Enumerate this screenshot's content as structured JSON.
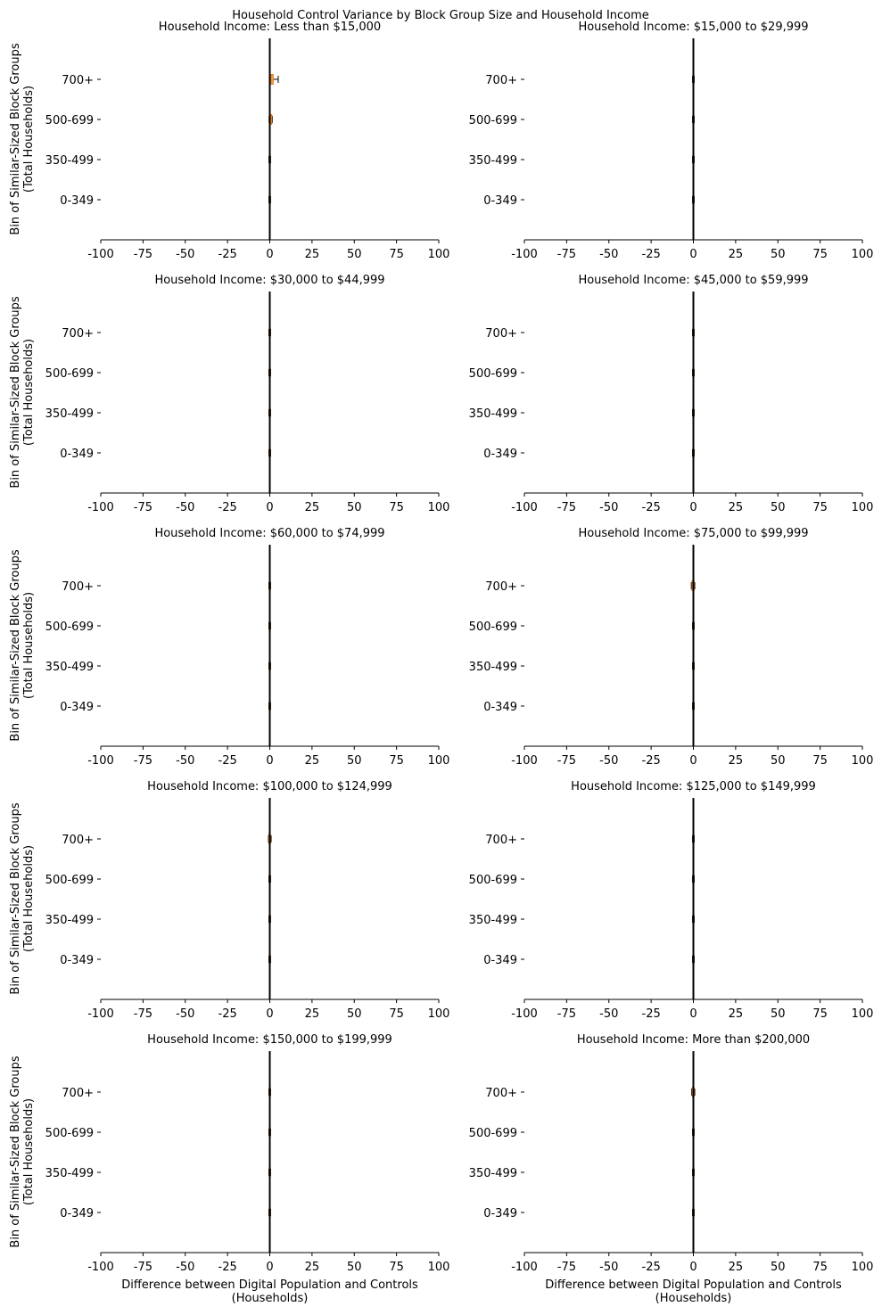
{
  "figure": {
    "title": "Household Control Variance by Block Group Size and Household Income"
  },
  "chart_data": {
    "type": "box",
    "orientation": "horizontal",
    "suptitle": "Household Control Variance by Block Group Size and Household Income",
    "shared": {
      "categories": [
        "0-349",
        "350-499",
        "500-699",
        "700+"
      ],
      "xlim": [
        -100,
        100
      ],
      "xticks": [
        -100,
        -75,
        -50,
        -25,
        0,
        25,
        50,
        75,
        100
      ],
      "xtick_labels": [
        "-100",
        "-75",
        "-50",
        "-25",
        "0",
        "25",
        "50",
        "75",
        "100"
      ],
      "ylabel": "Bin of Similar-Sized Block Groups\n(Total Households)",
      "xlabel": "Difference between Digital Population and Controls\n(Households)",
      "reference_line_x": 0,
      "box_color": "#f5a04a",
      "median_color": "#e07b21",
      "grid": false
    },
    "panels": [
      {
        "title": "Household Income: Less than $15,000",
        "boxes": [
          {
            "category": "0-349",
            "whislo": -0.5,
            "q1": -0.3,
            "med": 0.0,
            "q3": 0.3,
            "whishi": 0.5
          },
          {
            "category": "350-499",
            "whislo": -0.5,
            "q1": -0.3,
            "med": 0.0,
            "q3": 0.3,
            "whishi": 0.5
          },
          {
            "category": "500-699",
            "whislo": -0.4,
            "q1": -0.2,
            "med": 0.5,
            "q3": 1.2,
            "whishi": 1.5
          },
          {
            "category": "700+",
            "whislo": -0.2,
            "q1": 0.0,
            "med": 0.6,
            "q3": 2.0,
            "whishi": 5.0
          }
        ]
      },
      {
        "title": "Household Income: $15,000 to $29,999",
        "boxes": [
          {
            "category": "0-349",
            "whislo": -0.5,
            "q1": -0.3,
            "med": 0.0,
            "q3": 0.3,
            "whishi": 0.5
          },
          {
            "category": "350-499",
            "whislo": -0.5,
            "q1": -0.3,
            "med": 0.0,
            "q3": 0.3,
            "whishi": 0.5
          },
          {
            "category": "500-699",
            "whislo": -0.5,
            "q1": -0.3,
            "med": 0.0,
            "q3": 0.3,
            "whishi": 0.5
          },
          {
            "category": "700+",
            "whislo": -0.5,
            "q1": -0.3,
            "med": 0.0,
            "q3": 0.3,
            "whishi": 0.5
          }
        ]
      },
      {
        "title": "Household Income: $30,000 to $44,999",
        "boxes": [
          {
            "category": "0-349",
            "whislo": -0.5,
            "q1": -0.3,
            "med": 0.0,
            "q3": 0.3,
            "whishi": 0.5
          },
          {
            "category": "350-499",
            "whislo": -0.5,
            "q1": -0.3,
            "med": 0.0,
            "q3": 0.3,
            "whishi": 0.5
          },
          {
            "category": "500-699",
            "whislo": -0.5,
            "q1": -0.3,
            "med": 0.0,
            "q3": 0.3,
            "whishi": 0.5
          },
          {
            "category": "700+",
            "whislo": -0.5,
            "q1": -0.3,
            "med": 0.0,
            "q3": 0.3,
            "whishi": 0.5
          }
        ]
      },
      {
        "title": "Household Income: $45,000 to $59,999",
        "boxes": [
          {
            "category": "0-349",
            "whislo": -0.5,
            "q1": -0.3,
            "med": 0.0,
            "q3": 0.3,
            "whishi": 0.5
          },
          {
            "category": "350-499",
            "whislo": -0.5,
            "q1": -0.3,
            "med": 0.0,
            "q3": 0.3,
            "whishi": 0.5
          },
          {
            "category": "500-699",
            "whislo": -0.5,
            "q1": -0.3,
            "med": 0.0,
            "q3": 0.3,
            "whishi": 0.5
          },
          {
            "category": "700+",
            "whislo": -0.5,
            "q1": -0.3,
            "med": 0.0,
            "q3": 0.3,
            "whishi": 0.5
          }
        ]
      },
      {
        "title": "Household Income: $60,000 to $74,999",
        "boxes": [
          {
            "category": "0-349",
            "whislo": -0.5,
            "q1": -0.3,
            "med": 0.0,
            "q3": 0.3,
            "whishi": 0.5
          },
          {
            "category": "350-499",
            "whislo": -0.5,
            "q1": -0.3,
            "med": 0.0,
            "q3": 0.3,
            "whishi": 0.5
          },
          {
            "category": "500-699",
            "whislo": -0.5,
            "q1": -0.3,
            "med": 0.0,
            "q3": 0.3,
            "whishi": 0.5
          },
          {
            "category": "700+",
            "whislo": -0.5,
            "q1": -0.3,
            "med": 0.0,
            "q3": 0.3,
            "whishi": 0.5
          }
        ]
      },
      {
        "title": "Household Income: $75,000 to $99,999",
        "boxes": [
          {
            "category": "0-349",
            "whislo": -0.5,
            "q1": -0.3,
            "med": 0.0,
            "q3": 0.3,
            "whishi": 0.5
          },
          {
            "category": "350-499",
            "whislo": -0.5,
            "q1": -0.3,
            "med": 0.0,
            "q3": 0.3,
            "whishi": 0.5
          },
          {
            "category": "500-699",
            "whislo": -0.5,
            "q1": -0.3,
            "med": 0.0,
            "q3": 0.3,
            "whishi": 0.5
          },
          {
            "category": "700+",
            "whislo": -1.2,
            "q1": -0.8,
            "med": -0.2,
            "q3": 0.4,
            "whishi": 0.8
          }
        ]
      },
      {
        "title": "Household Income: $100,000 to $124,999",
        "boxes": [
          {
            "category": "0-349",
            "whislo": -0.5,
            "q1": -0.3,
            "med": 0.0,
            "q3": 0.3,
            "whishi": 0.5
          },
          {
            "category": "350-499",
            "whislo": -0.5,
            "q1": -0.3,
            "med": 0.0,
            "q3": 0.3,
            "whishi": 0.5
          },
          {
            "category": "500-699",
            "whislo": -0.5,
            "q1": -0.3,
            "med": 0.0,
            "q3": 0.3,
            "whishi": 0.5
          },
          {
            "category": "700+",
            "whislo": -0.8,
            "q1": -0.6,
            "med": 0.0,
            "q3": 0.4,
            "whishi": 0.8
          }
        ]
      },
      {
        "title": "Household Income: $125,000 to $149,999",
        "boxes": [
          {
            "category": "0-349",
            "whislo": -0.5,
            "q1": -0.3,
            "med": 0.0,
            "q3": 0.3,
            "whishi": 0.5
          },
          {
            "category": "350-499",
            "whislo": -0.5,
            "q1": -0.3,
            "med": 0.0,
            "q3": 0.3,
            "whishi": 0.5
          },
          {
            "category": "500-699",
            "whislo": -0.5,
            "q1": -0.3,
            "med": 0.0,
            "q3": 0.3,
            "whishi": 0.5
          },
          {
            "category": "700+",
            "whislo": -0.5,
            "q1": -0.3,
            "med": 0.0,
            "q3": 0.3,
            "whishi": 0.5
          }
        ]
      },
      {
        "title": "Household Income: $150,000 to $199,999",
        "boxes": [
          {
            "category": "0-349",
            "whislo": -0.5,
            "q1": -0.3,
            "med": 0.0,
            "q3": 0.3,
            "whishi": 0.5
          },
          {
            "category": "350-499",
            "whislo": -0.5,
            "q1": -0.3,
            "med": 0.0,
            "q3": 0.3,
            "whishi": 0.5
          },
          {
            "category": "500-699",
            "whislo": -0.5,
            "q1": -0.3,
            "med": 0.0,
            "q3": 0.3,
            "whishi": 0.5
          },
          {
            "category": "700+",
            "whislo": -0.5,
            "q1": -0.3,
            "med": 0.0,
            "q3": 0.3,
            "whishi": 0.5
          }
        ]
      },
      {
        "title": "Household Income: More than $200,000",
        "boxes": [
          {
            "category": "0-349",
            "whislo": -0.5,
            "q1": -0.3,
            "med": 0.0,
            "q3": 0.3,
            "whishi": 0.5
          },
          {
            "category": "350-499",
            "whislo": -0.5,
            "q1": -0.3,
            "med": 0.0,
            "q3": 0.3,
            "whishi": 0.5
          },
          {
            "category": "500-699",
            "whislo": -0.5,
            "q1": -0.3,
            "med": 0.0,
            "q3": 0.3,
            "whishi": 0.5
          },
          {
            "category": "700+",
            "whislo": -1.0,
            "q1": -0.6,
            "med": 0.0,
            "q3": 0.4,
            "whishi": 0.8
          }
        ]
      }
    ]
  }
}
